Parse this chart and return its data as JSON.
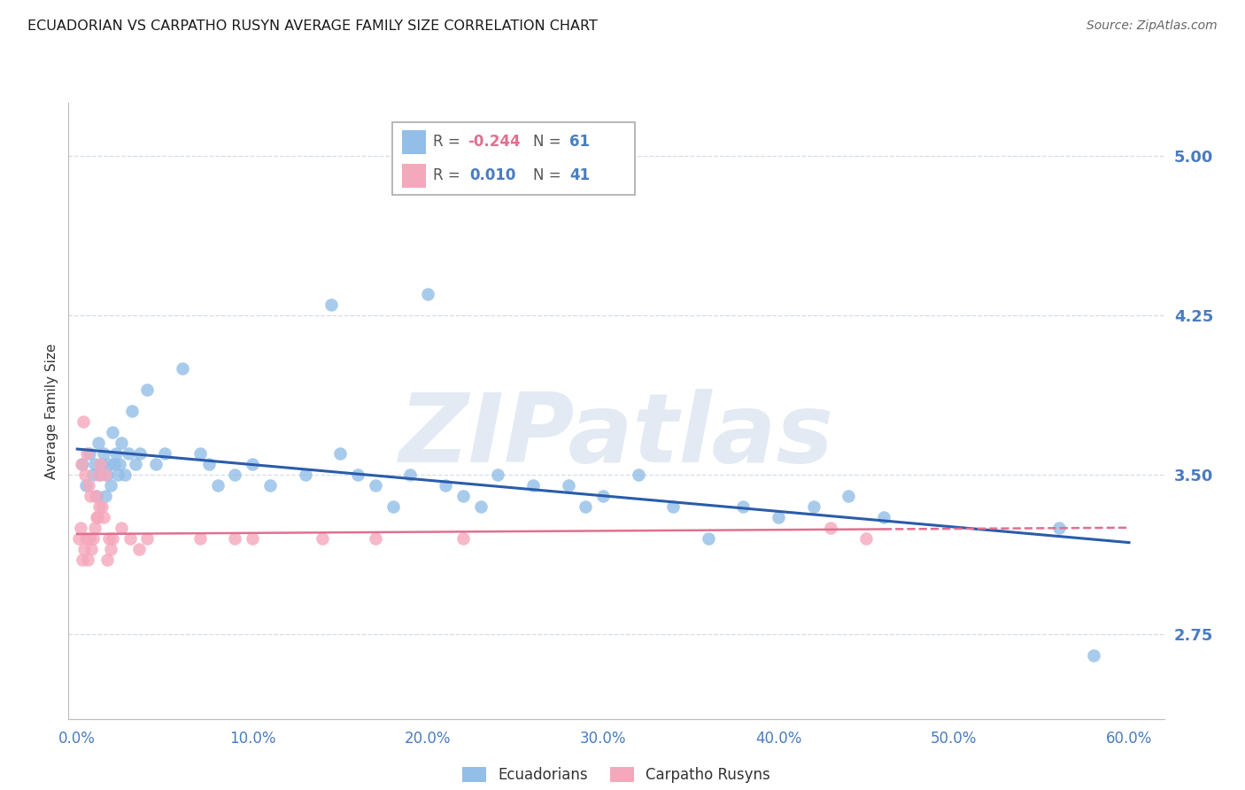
{
  "title": "ECUADORIAN VS CARPATHO RUSYN AVERAGE FAMILY SIZE CORRELATION CHART",
  "source": "Source: ZipAtlas.com",
  "ylabel": "Average Family Size",
  "xlabel_ticks": [
    "0.0%",
    "10.0%",
    "20.0%",
    "30.0%",
    "40.0%",
    "50.0%",
    "60.0%"
  ],
  "xlabel_vals": [
    0.0,
    10.0,
    20.0,
    30.0,
    40.0,
    50.0,
    60.0
  ],
  "ytick_vals": [
    2.75,
    3.5,
    4.25,
    5.0
  ],
  "ytick_labels": [
    "2.75",
    "3.50",
    "4.25",
    "5.00"
  ],
  "ylim": [
    2.35,
    5.25
  ],
  "xlim": [
    -0.5,
    62.0
  ],
  "ecuadorian_color": "#92bee8",
  "carpatho_color": "#f5a8bc",
  "trend_blue": "#2a5caa",
  "trend_pink": "#e07090",
  "watermark": "ZIPatlas",
  "watermark_color": "#ccd9ea",
  "axis_color": "#4a7cc0",
  "grid_color": "#d5dde8",
  "title_color": "#1a1a1a",
  "source_color": "#666666",
  "ylabel_color": "#333333",
  "tick_label_color": "#4a7cc0",
  "legend_neg_color": "#e07090",
  "legend_pos_color": "#4a7cc0",
  "ecuadorians_x": [
    0.3,
    0.5,
    0.7,
    0.9,
    1.0,
    1.1,
    1.2,
    1.3,
    1.4,
    1.5,
    1.6,
    1.7,
    1.8,
    1.9,
    2.0,
    2.1,
    2.2,
    2.3,
    2.4,
    2.5,
    2.7,
    2.9,
    3.1,
    3.3,
    3.6,
    4.0,
    4.5,
    5.0,
    6.0,
    7.0,
    7.5,
    8.0,
    9.0,
    10.0,
    11.0,
    13.0,
    14.5,
    15.0,
    16.0,
    17.0,
    18.0,
    19.0,
    20.0,
    21.0,
    22.0,
    23.0,
    24.0,
    26.0,
    28.0,
    29.0,
    30.0,
    32.0,
    34.0,
    36.0,
    38.0,
    40.0,
    42.0,
    44.0,
    46.0,
    56.0,
    58.0
  ],
  "ecuadorians_y": [
    3.55,
    3.45,
    3.6,
    3.5,
    3.55,
    3.4,
    3.65,
    3.5,
    3.55,
    3.6,
    3.4,
    3.5,
    3.55,
    3.45,
    3.7,
    3.55,
    3.6,
    3.5,
    3.55,
    3.65,
    3.5,
    3.6,
    3.8,
    3.55,
    3.6,
    3.9,
    3.55,
    3.6,
    4.0,
    3.6,
    3.55,
    3.45,
    3.5,
    3.55,
    3.45,
    3.5,
    4.3,
    3.6,
    3.5,
    3.45,
    3.35,
    3.5,
    4.35,
    3.45,
    3.4,
    3.35,
    3.5,
    3.45,
    3.45,
    3.35,
    3.4,
    3.5,
    3.35,
    3.2,
    3.35,
    3.3,
    3.35,
    3.4,
    3.3,
    3.25,
    2.65
  ],
  "carpatho_x": [
    0.1,
    0.2,
    0.3,
    0.4,
    0.5,
    0.6,
    0.7,
    0.8,
    0.9,
    1.0,
    1.1,
    1.2,
    1.3,
    1.4,
    1.5,
    1.6,
    1.7,
    1.8,
    1.9,
    2.0,
    2.5,
    3.0,
    3.5,
    4.0,
    7.0,
    9.0,
    10.0,
    14.0,
    17.0,
    22.0,
    43.0,
    45.0,
    0.25,
    0.35,
    0.45,
    0.55,
    0.65,
    0.75,
    1.05,
    1.15,
    1.25
  ],
  "carpatho_y": [
    3.2,
    3.25,
    3.1,
    3.15,
    3.2,
    3.1,
    3.2,
    3.15,
    3.2,
    3.25,
    3.3,
    3.5,
    3.55,
    3.35,
    3.3,
    3.5,
    3.1,
    3.2,
    3.15,
    3.2,
    3.25,
    3.2,
    3.15,
    3.2,
    3.2,
    3.2,
    3.2,
    3.2,
    3.2,
    3.2,
    3.25,
    3.2,
    3.55,
    3.75,
    3.5,
    3.6,
    3.45,
    3.4,
    3.4,
    3.3,
    3.35
  ],
  "ecu_trend_x0": 0.0,
  "ecu_trend_x1": 60.0,
  "ecu_trend_y0": 3.62,
  "ecu_trend_y1": 3.18,
  "carp_trend_x0": 0.0,
  "carp_trend_x1": 60.0,
  "carp_trend_y0": 3.22,
  "carp_trend_y1": 3.25,
  "carp_solid_end": 46.0
}
